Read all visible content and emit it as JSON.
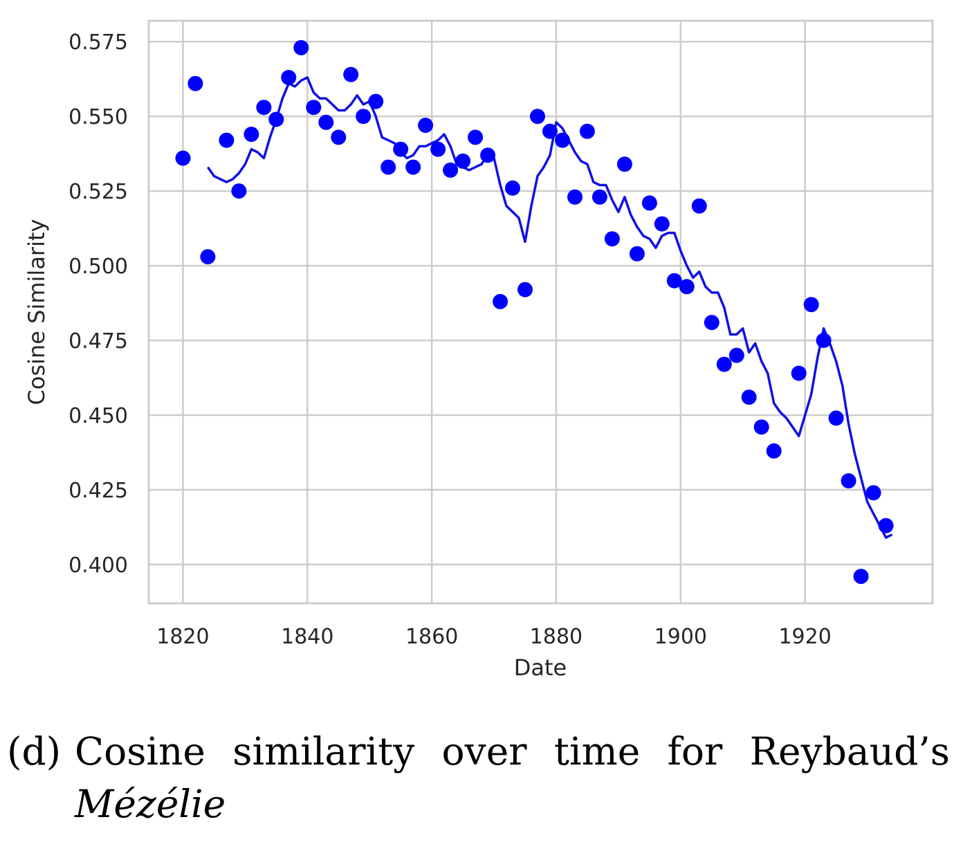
{
  "chart_data": {
    "type": "scatter",
    "xlabel": "Date",
    "ylabel": "Cosine Similarity",
    "xlim": [
      1814.5,
      1940.5
    ],
    "ylim": [
      0.387,
      0.582
    ],
    "xticks": [
      "1820",
      "1840",
      "1860",
      "1880",
      "1900",
      "1920"
    ],
    "yticks": [
      "0.400",
      "0.425",
      "0.450",
      "0.475",
      "0.500",
      "0.525",
      "0.550",
      "0.575"
    ],
    "grid": true,
    "series": [
      {
        "type": "scatter",
        "color": "#0000ff",
        "x": [
          1820,
          1822,
          1824,
          1827,
          1829,
          1831,
          1833,
          1835,
          1837,
          1839,
          1841,
          1843,
          1845,
          1847,
          1849,
          1851,
          1853,
          1855,
          1857,
          1859,
          1861,
          1863,
          1865,
          1867,
          1869,
          1871,
          1873,
          1875,
          1877,
          1879,
          1881,
          1883,
          1885,
          1887,
          1889,
          1891,
          1893,
          1895,
          1897,
          1899,
          1901,
          1903,
          1905,
          1907,
          1909,
          1911,
          1913,
          1915,
          1919,
          1921,
          1923,
          1925,
          1927,
          1929,
          1931,
          1933
        ],
        "y": [
          0.536,
          0.561,
          0.503,
          0.542,
          0.525,
          0.544,
          0.553,
          0.549,
          0.563,
          0.573,
          0.553,
          0.548,
          0.543,
          0.564,
          0.55,
          0.555,
          0.533,
          0.539,
          0.533,
          0.547,
          0.539,
          0.532,
          0.535,
          0.543,
          0.537,
          0.488,
          0.526,
          0.492,
          0.55,
          0.545,
          0.542,
          0.523,
          0.545,
          0.523,
          0.509,
          0.534,
          0.504,
          0.521,
          0.514,
          0.495,
          0.493,
          0.52,
          0.481,
          0.467,
          0.47,
          0.456,
          0.446,
          0.438,
          0.464,
          0.487,
          0.475,
          0.449,
          0.428,
          0.396,
          0.424,
          0.413
        ]
      },
      {
        "type": "line",
        "color": "#1010e6",
        "x": [
          1824,
          1825,
          1827,
          1828,
          1829,
          1830,
          1831,
          1832,
          1833,
          1834,
          1835,
          1836,
          1837,
          1838,
          1839,
          1840,
          1841,
          1842,
          1843,
          1844,
          1845,
          1846,
          1847,
          1848,
          1849,
          1850,
          1851,
          1852,
          1853,
          1854,
          1855,
          1856,
          1857,
          1858,
          1859,
          1860,
          1861,
          1862,
          1863,
          1864,
          1865,
          1866,
          1867,
          1868,
          1869,
          1870,
          1871,
          1872,
          1873,
          1874,
          1875,
          1876,
          1877,
          1878,
          1879,
          1880,
          1881,
          1882,
          1883,
          1884,
          1885,
          1886,
          1887,
          1888,
          1889,
          1890,
          1891,
          1892,
          1893,
          1894,
          1895,
          1896,
          1897,
          1898,
          1899,
          1900,
          1901,
          1902,
          1903,
          1904,
          1905,
          1906,
          1907,
          1908,
          1909,
          1910,
          1911,
          1912,
          1913,
          1914,
          1915,
          1916,
          1917,
          1918,
          1919,
          1920,
          1921,
          1922,
          1923,
          1924,
          1925,
          1926,
          1927,
          1928,
          1929,
          1930,
          1931,
          1932,
          1933,
          1934
        ],
        "y": [
          0.533,
          0.53,
          0.528,
          0.529,
          0.531,
          0.534,
          0.539,
          0.538,
          0.536,
          0.543,
          0.549,
          0.556,
          0.561,
          0.56,
          0.562,
          0.563,
          0.558,
          0.556,
          0.556,
          0.554,
          0.552,
          0.552,
          0.554,
          0.557,
          0.554,
          0.555,
          0.55,
          0.543,
          0.542,
          0.541,
          0.538,
          0.536,
          0.537,
          0.54,
          0.54,
          0.541,
          0.542,
          0.544,
          0.54,
          0.534,
          0.533,
          0.532,
          0.533,
          0.534,
          0.537,
          0.536,
          0.527,
          0.52,
          0.518,
          0.516,
          0.508,
          0.52,
          0.53,
          0.533,
          0.537,
          0.548,
          0.546,
          0.542,
          0.538,
          0.535,
          0.534,
          0.528,
          0.527,
          0.527,
          0.522,
          0.518,
          0.523,
          0.517,
          0.513,
          0.51,
          0.509,
          0.506,
          0.51,
          0.511,
          0.511,
          0.505,
          0.5,
          0.496,
          0.498,
          0.493,
          0.491,
          0.491,
          0.486,
          0.477,
          0.477,
          0.479,
          0.471,
          0.474,
          0.468,
          0.464,
          0.454,
          0.451,
          0.449,
          0.446,
          0.443,
          0.45,
          0.457,
          0.469,
          0.479,
          0.474,
          0.468,
          0.46,
          0.447,
          0.437,
          0.429,
          0.421,
          0.417,
          0.413,
          0.409,
          0.41
        ]
      }
    ]
  },
  "caption": {
    "prefix": "(d)",
    "text": "Cosine similarity over time for Reybaud’s",
    "italic": "Mézélie"
  }
}
